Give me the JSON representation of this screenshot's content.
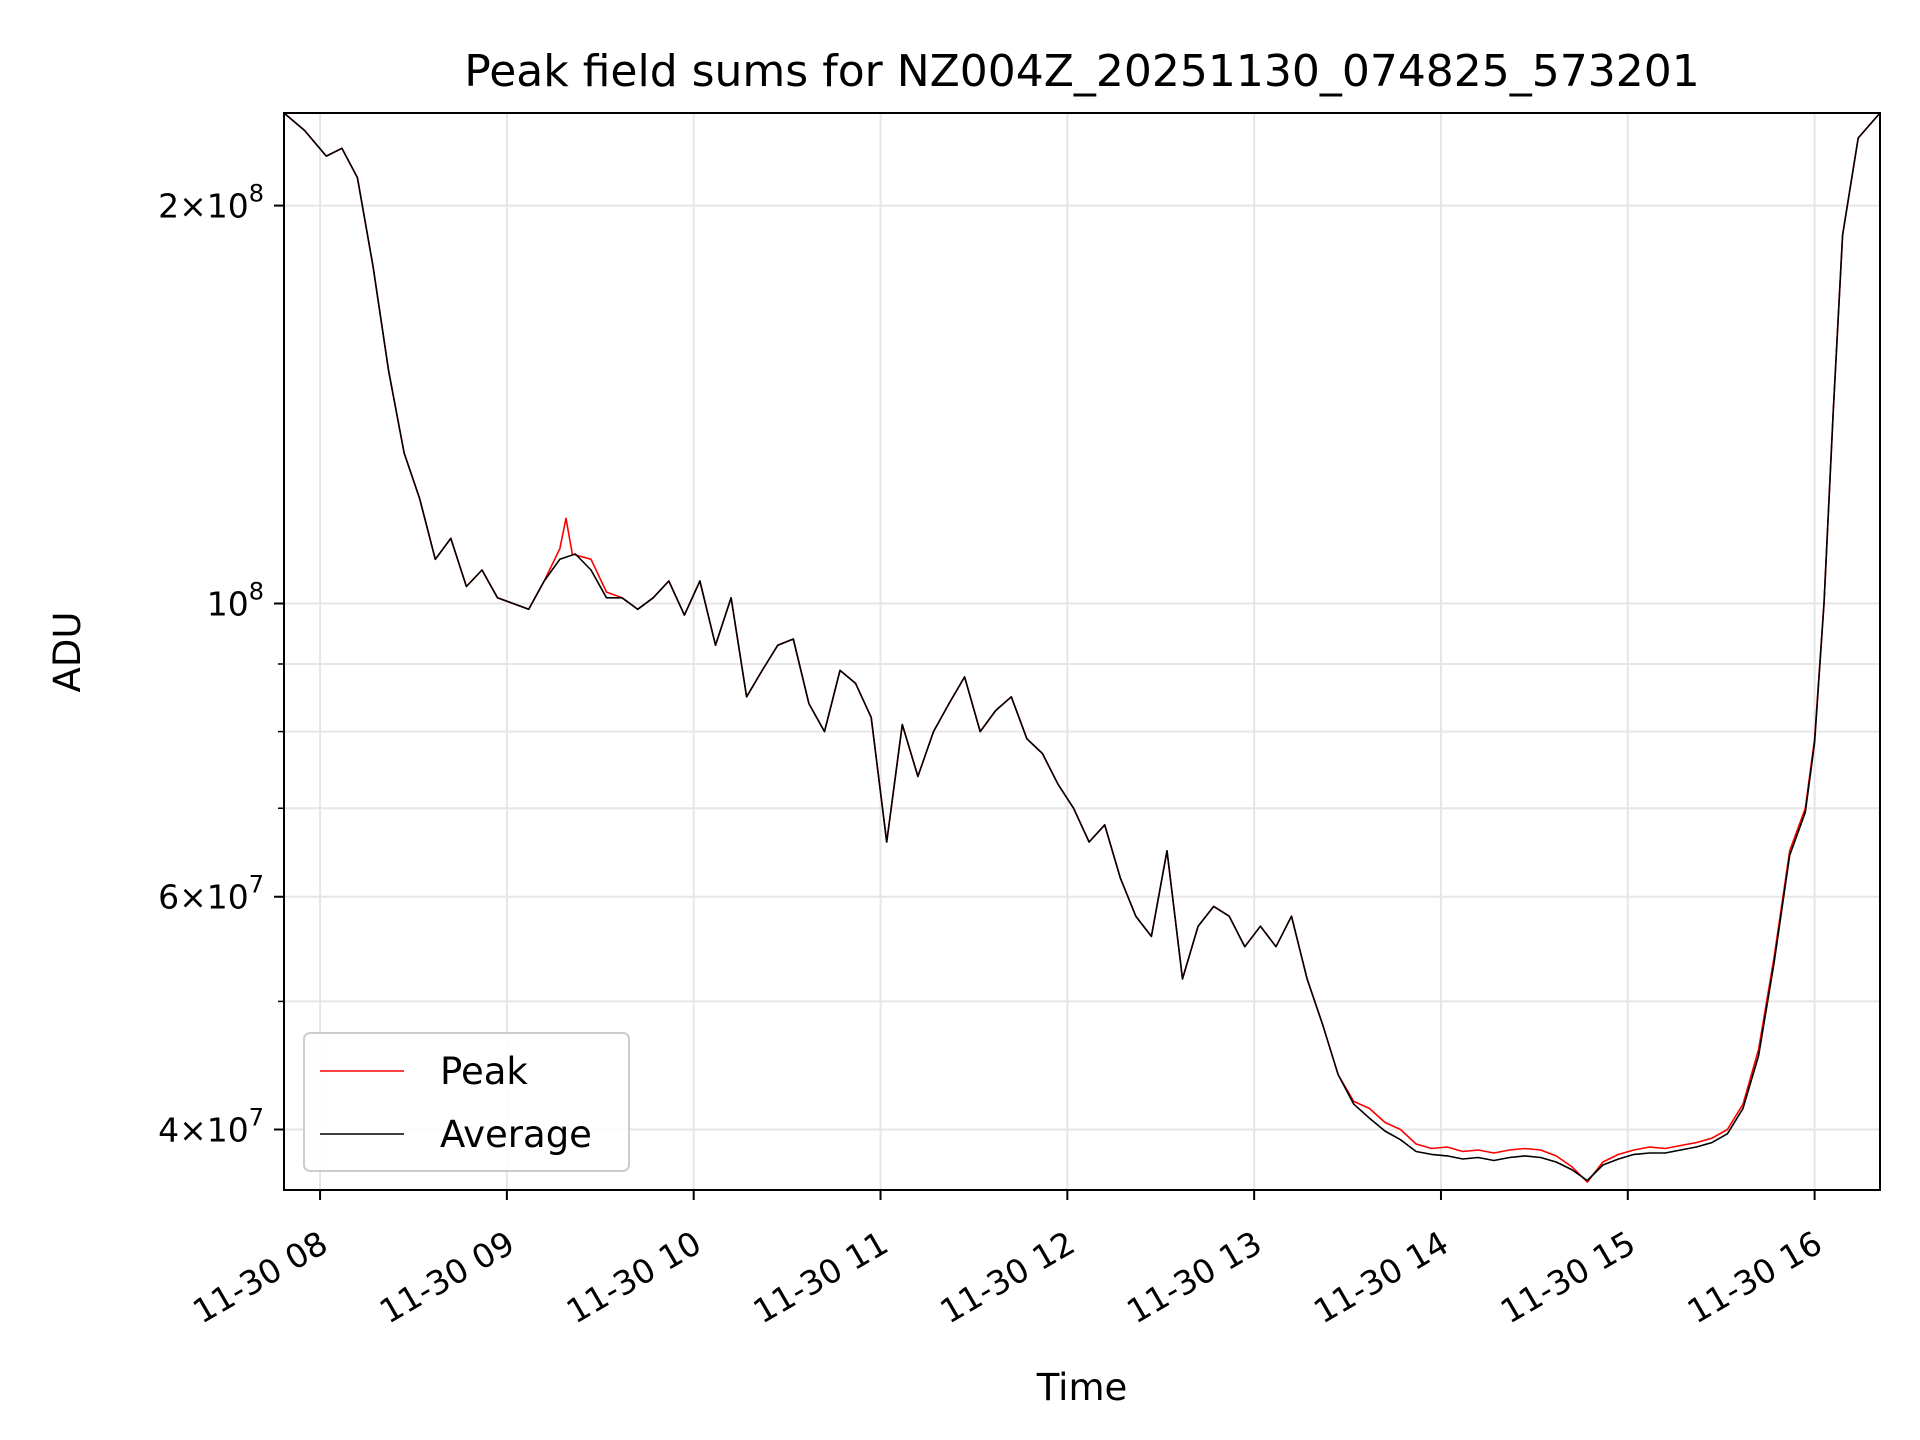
{
  "chart_data": {
    "type": "line",
    "title": "Peak field sums for NZ004Z_20251130_074825_573201",
    "xlabel": "Time",
    "ylabel": "ADU",
    "yscale": "log",
    "ylim": [
      36000000,
      235000000
    ],
    "xlim": [
      "2025-11-30 07:48:25",
      "2025-11-30 16:21:00"
    ],
    "grid": true,
    "legend_position": "lower-left",
    "x_ticks": [
      {
        "t": "2025-11-30 08:00",
        "label": "11-30 08"
      },
      {
        "t": "2025-11-30 09:00",
        "label": "11-30 09"
      },
      {
        "t": "2025-11-30 10:00",
        "label": "11-30 10"
      },
      {
        "t": "2025-11-30 11:00",
        "label": "11-30 11"
      },
      {
        "t": "2025-11-30 12:00",
        "label": "11-30 12"
      },
      {
        "t": "2025-11-30 13:00",
        "label": "11-30 13"
      },
      {
        "t": "2025-11-30 14:00",
        "label": "11-30 14"
      },
      {
        "t": "2025-11-30 15:00",
        "label": "11-30 15"
      },
      {
        "t": "2025-11-30 16:00",
        "label": "11-30 16"
      }
    ],
    "y_major_ticks": [
      {
        "v": 40000000,
        "mant": "4",
        "exp": "7"
      },
      {
        "v": 60000000,
        "mant": "6",
        "exp": "7"
      },
      {
        "v": 100000000,
        "mant": "",
        "exp": "8"
      },
      {
        "v": 200000000,
        "mant": "2",
        "exp": "8"
      }
    ],
    "y_minor_ticks": [
      50000000,
      70000000,
      80000000,
      90000000
    ],
    "series": [
      {
        "name": "Peak",
        "color": "#ff0000",
        "points": [
          [
            "2025-11-30 07:48",
            235000000
          ],
          [
            "2025-11-30 07:55",
            228000000
          ],
          [
            "2025-11-30 08:02",
            218000000
          ],
          [
            "2025-11-30 08:07",
            221000000
          ],
          [
            "2025-11-30 08:12",
            210000000
          ],
          [
            "2025-11-30 08:17",
            180000000
          ],
          [
            "2025-11-30 08:22",
            150000000
          ],
          [
            "2025-11-30 08:27",
            130000000
          ],
          [
            "2025-11-30 08:32",
            120000000
          ],
          [
            "2025-11-30 08:37",
            108000000
          ],
          [
            "2025-11-30 08:42",
            112000000
          ],
          [
            "2025-11-30 08:47",
            103000000
          ],
          [
            "2025-11-30 08:52",
            106000000
          ],
          [
            "2025-11-30 08:57",
            101000000
          ],
          [
            "2025-11-30 09:02",
            100000000
          ],
          [
            "2025-11-30 09:07",
            99000000
          ],
          [
            "2025-11-30 09:12",
            104000000
          ],
          [
            "2025-11-30 09:17",
            110000000
          ],
          [
            "2025-11-30 09:19",
            116000000
          ],
          [
            "2025-11-30 09:21",
            109000000
          ],
          [
            "2025-11-30 09:27",
            108000000
          ],
          [
            "2025-11-30 09:32",
            102000000
          ],
          [
            "2025-11-30 09:37",
            101000000
          ],
          [
            "2025-11-30 09:42",
            99000000
          ],
          [
            "2025-11-30 09:47",
            101000000
          ],
          [
            "2025-11-30 09:52",
            104000000
          ],
          [
            "2025-11-30 09:57",
            98000000
          ],
          [
            "2025-11-30 10:02",
            104000000
          ],
          [
            "2025-11-30 10:07",
            93000000
          ],
          [
            "2025-11-30 10:12",
            101000000
          ],
          [
            "2025-11-30 10:17",
            85000000
          ],
          [
            "2025-11-30 10:22",
            89000000
          ],
          [
            "2025-11-30 10:27",
            93000000
          ],
          [
            "2025-11-30 10:32",
            94000000
          ],
          [
            "2025-11-30 10:37",
            84000000
          ],
          [
            "2025-11-30 10:42",
            80000000
          ],
          [
            "2025-11-30 10:47",
            89000000
          ],
          [
            "2025-11-30 10:52",
            87000000
          ],
          [
            "2025-11-30 10:57",
            82000000
          ],
          [
            "2025-11-30 11:02",
            66000000
          ],
          [
            "2025-11-30 11:07",
            81000000
          ],
          [
            "2025-11-30 11:12",
            74000000
          ],
          [
            "2025-11-30 11:17",
            80000000
          ],
          [
            "2025-11-30 11:22",
            84000000
          ],
          [
            "2025-11-30 11:27",
            88000000
          ],
          [
            "2025-11-30 11:32",
            80000000
          ],
          [
            "2025-11-30 11:37",
            83000000
          ],
          [
            "2025-11-30 11:42",
            85000000
          ],
          [
            "2025-11-30 11:47",
            79000000
          ],
          [
            "2025-11-30 11:52",
            77000000
          ],
          [
            "2025-11-30 11:57",
            73000000
          ],
          [
            "2025-11-30 12:02",
            70000000
          ],
          [
            "2025-11-30 12:07",
            66000000
          ],
          [
            "2025-11-30 12:12",
            68000000
          ],
          [
            "2025-11-30 12:17",
            62000000
          ],
          [
            "2025-11-30 12:22",
            58000000
          ],
          [
            "2025-11-30 12:27",
            56000000
          ],
          [
            "2025-11-30 12:32",
            65000000
          ],
          [
            "2025-11-30 12:37",
            52000000
          ],
          [
            "2025-11-30 12:42",
            57000000
          ],
          [
            "2025-11-30 12:47",
            59000000
          ],
          [
            "2025-11-30 12:52",
            58000000
          ],
          [
            "2025-11-30 12:57",
            55000000
          ],
          [
            "2025-11-30 13:02",
            57000000
          ],
          [
            "2025-11-30 13:07",
            55000000
          ],
          [
            "2025-11-30 13:12",
            58000000
          ],
          [
            "2025-11-30 13:17",
            52000000
          ],
          [
            "2025-11-30 13:22",
            48000000
          ],
          [
            "2025-11-30 13:27",
            44000000
          ],
          [
            "2025-11-30 13:32",
            42000000
          ],
          [
            "2025-11-30 13:37",
            41500000
          ],
          [
            "2025-11-30 13:42",
            40500000
          ],
          [
            "2025-11-30 13:47",
            40000000
          ],
          [
            "2025-11-30 13:52",
            39000000
          ],
          [
            "2025-11-30 13:57",
            38700000
          ],
          [
            "2025-11-30 14:02",
            38800000
          ],
          [
            "2025-11-30 14:07",
            38500000
          ],
          [
            "2025-11-30 14:12",
            38600000
          ],
          [
            "2025-11-30 14:17",
            38400000
          ],
          [
            "2025-11-30 14:22",
            38600000
          ],
          [
            "2025-11-30 14:27",
            38700000
          ],
          [
            "2025-11-30 14:32",
            38600000
          ],
          [
            "2025-11-30 14:37",
            38200000
          ],
          [
            "2025-11-30 14:42",
            37500000
          ],
          [
            "2025-11-30 14:47",
            36500000
          ],
          [
            "2025-11-30 14:52",
            37800000
          ],
          [
            "2025-11-30 14:57",
            38300000
          ],
          [
            "2025-11-30 15:02",
            38600000
          ],
          [
            "2025-11-30 15:07",
            38800000
          ],
          [
            "2025-11-30 15:12",
            38700000
          ],
          [
            "2025-11-30 15:17",
            38900000
          ],
          [
            "2025-11-30 15:22",
            39100000
          ],
          [
            "2025-11-30 15:27",
            39400000
          ],
          [
            "2025-11-30 15:32",
            40000000
          ],
          [
            "2025-11-30 15:37",
            41800000
          ],
          [
            "2025-11-30 15:42",
            46000000
          ],
          [
            "2025-11-30 15:47",
            54000000
          ],
          [
            "2025-11-30 15:52",
            65000000
          ],
          [
            "2025-11-30 15:57",
            70000000
          ],
          [
            "2025-11-30 16:00",
            79000000
          ],
          [
            "2025-11-30 16:03",
            100000000
          ],
          [
            "2025-11-30 16:06",
            140000000
          ],
          [
            "2025-11-30 16:09",
            190000000
          ],
          [
            "2025-11-30 16:14",
            225000000
          ],
          [
            "2025-11-30 16:21",
            235000000
          ]
        ]
      },
      {
        "name": "Average",
        "color": "#000000",
        "points": [
          [
            "2025-11-30 07:48",
            235000000
          ],
          [
            "2025-11-30 07:55",
            228000000
          ],
          [
            "2025-11-30 08:02",
            218000000
          ],
          [
            "2025-11-30 08:07",
            221000000
          ],
          [
            "2025-11-30 08:12",
            210000000
          ],
          [
            "2025-11-30 08:17",
            180000000
          ],
          [
            "2025-11-30 08:22",
            150000000
          ],
          [
            "2025-11-30 08:27",
            130000000
          ],
          [
            "2025-11-30 08:32",
            120000000
          ],
          [
            "2025-11-30 08:37",
            108000000
          ],
          [
            "2025-11-30 08:42",
            112000000
          ],
          [
            "2025-11-30 08:47",
            103000000
          ],
          [
            "2025-11-30 08:52",
            106000000
          ],
          [
            "2025-11-30 08:57",
            101000000
          ],
          [
            "2025-11-30 09:02",
            100000000
          ],
          [
            "2025-11-30 09:07",
            99000000
          ],
          [
            "2025-11-30 09:12",
            104000000
          ],
          [
            "2025-11-30 09:17",
            108000000
          ],
          [
            "2025-11-30 09:22",
            109000000
          ],
          [
            "2025-11-30 09:27",
            106000000
          ],
          [
            "2025-11-30 09:32",
            101000000
          ],
          [
            "2025-11-30 09:37",
            101000000
          ],
          [
            "2025-11-30 09:42",
            99000000
          ],
          [
            "2025-11-30 09:47",
            101000000
          ],
          [
            "2025-11-30 09:52",
            104000000
          ],
          [
            "2025-11-30 09:57",
            98000000
          ],
          [
            "2025-11-30 10:02",
            104000000
          ],
          [
            "2025-11-30 10:07",
            93000000
          ],
          [
            "2025-11-30 10:12",
            101000000
          ],
          [
            "2025-11-30 10:17",
            85000000
          ],
          [
            "2025-11-30 10:22",
            89000000
          ],
          [
            "2025-11-30 10:27",
            93000000
          ],
          [
            "2025-11-30 10:32",
            94000000
          ],
          [
            "2025-11-30 10:37",
            84000000
          ],
          [
            "2025-11-30 10:42",
            80000000
          ],
          [
            "2025-11-30 10:47",
            89000000
          ],
          [
            "2025-11-30 10:52",
            87000000
          ],
          [
            "2025-11-30 10:57",
            82000000
          ],
          [
            "2025-11-30 11:02",
            66000000
          ],
          [
            "2025-11-30 11:07",
            81000000
          ],
          [
            "2025-11-30 11:12",
            74000000
          ],
          [
            "2025-11-30 11:17",
            80000000
          ],
          [
            "2025-11-30 11:22",
            84000000
          ],
          [
            "2025-11-30 11:27",
            88000000
          ],
          [
            "2025-11-30 11:32",
            80000000
          ],
          [
            "2025-11-30 11:37",
            83000000
          ],
          [
            "2025-11-30 11:42",
            85000000
          ],
          [
            "2025-11-30 11:47",
            79000000
          ],
          [
            "2025-11-30 11:52",
            77000000
          ],
          [
            "2025-11-30 11:57",
            73000000
          ],
          [
            "2025-11-30 12:02",
            70000000
          ],
          [
            "2025-11-30 12:07",
            66000000
          ],
          [
            "2025-11-30 12:12",
            68000000
          ],
          [
            "2025-11-30 12:17",
            62000000
          ],
          [
            "2025-11-30 12:22",
            58000000
          ],
          [
            "2025-11-30 12:27",
            56000000
          ],
          [
            "2025-11-30 12:32",
            65000000
          ],
          [
            "2025-11-30 12:37",
            52000000
          ],
          [
            "2025-11-30 12:42",
            57000000
          ],
          [
            "2025-11-30 12:47",
            59000000
          ],
          [
            "2025-11-30 12:52",
            58000000
          ],
          [
            "2025-11-30 12:57",
            55000000
          ],
          [
            "2025-11-30 13:02",
            57000000
          ],
          [
            "2025-11-30 13:07",
            55000000
          ],
          [
            "2025-11-30 13:12",
            58000000
          ],
          [
            "2025-11-30 13:17",
            52000000
          ],
          [
            "2025-11-30 13:22",
            48000000
          ],
          [
            "2025-11-30 13:27",
            44000000
          ],
          [
            "2025-11-30 13:32",
            41800000
          ],
          [
            "2025-11-30 13:37",
            40800000
          ],
          [
            "2025-11-30 13:42",
            39900000
          ],
          [
            "2025-11-30 13:47",
            39300000
          ],
          [
            "2025-11-30 13:52",
            38500000
          ],
          [
            "2025-11-30 13:57",
            38300000
          ],
          [
            "2025-11-30 14:02",
            38200000
          ],
          [
            "2025-11-30 14:07",
            38000000
          ],
          [
            "2025-11-30 14:12",
            38100000
          ],
          [
            "2025-11-30 14:17",
            37900000
          ],
          [
            "2025-11-30 14:22",
            38100000
          ],
          [
            "2025-11-30 14:27",
            38200000
          ],
          [
            "2025-11-30 14:32",
            38100000
          ],
          [
            "2025-11-30 14:37",
            37800000
          ],
          [
            "2025-11-30 14:42",
            37300000
          ],
          [
            "2025-11-30 14:47",
            36600000
          ],
          [
            "2025-11-30 14:52",
            37600000
          ],
          [
            "2025-11-30 14:57",
            38000000
          ],
          [
            "2025-11-30 15:02",
            38300000
          ],
          [
            "2025-11-30 15:07",
            38400000
          ],
          [
            "2025-11-30 15:12",
            38400000
          ],
          [
            "2025-11-30 15:17",
            38600000
          ],
          [
            "2025-11-30 15:22",
            38800000
          ],
          [
            "2025-11-30 15:27",
            39100000
          ],
          [
            "2025-11-30 15:32",
            39700000
          ],
          [
            "2025-11-30 15:37",
            41500000
          ],
          [
            "2025-11-30 15:42",
            45500000
          ],
          [
            "2025-11-30 15:47",
            53500000
          ],
          [
            "2025-11-30 15:52",
            64500000
          ],
          [
            "2025-11-30 15:57",
            69500000
          ],
          [
            "2025-11-30 16:00",
            78500000
          ],
          [
            "2025-11-30 16:03",
            100000000
          ],
          [
            "2025-11-30 16:06",
            140000000
          ],
          [
            "2025-11-30 16:09",
            190000000
          ],
          [
            "2025-11-30 16:14",
            225000000
          ],
          [
            "2025-11-30 16:21",
            235000000
          ]
        ]
      }
    ]
  }
}
